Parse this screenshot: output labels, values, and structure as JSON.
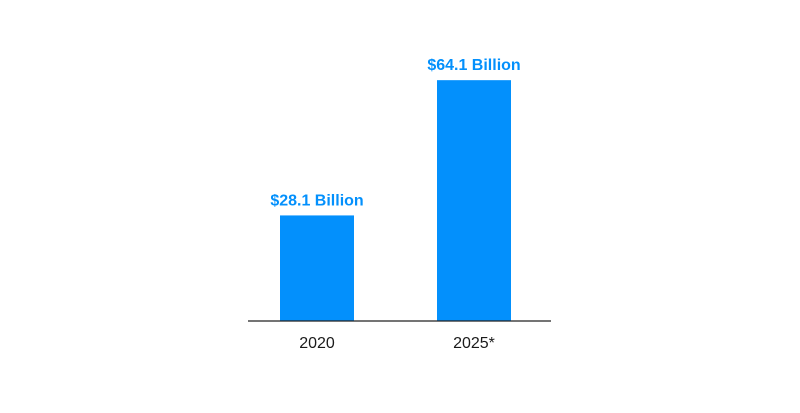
{
  "chart_data": {
    "type": "bar",
    "categories": [
      "2020",
      "2025*"
    ],
    "values": [
      28.1,
      64.1
    ],
    "data_labels": [
      "$28.1 Billion",
      "$64.1 Billion"
    ],
    "title": "",
    "xlabel": "",
    "ylabel": "",
    "ylim": [
      0,
      70
    ],
    "grid": false,
    "legend": "none",
    "bar_color": "#0390fc",
    "label_color": "#0390fc",
    "axis_color": "#222222"
  }
}
